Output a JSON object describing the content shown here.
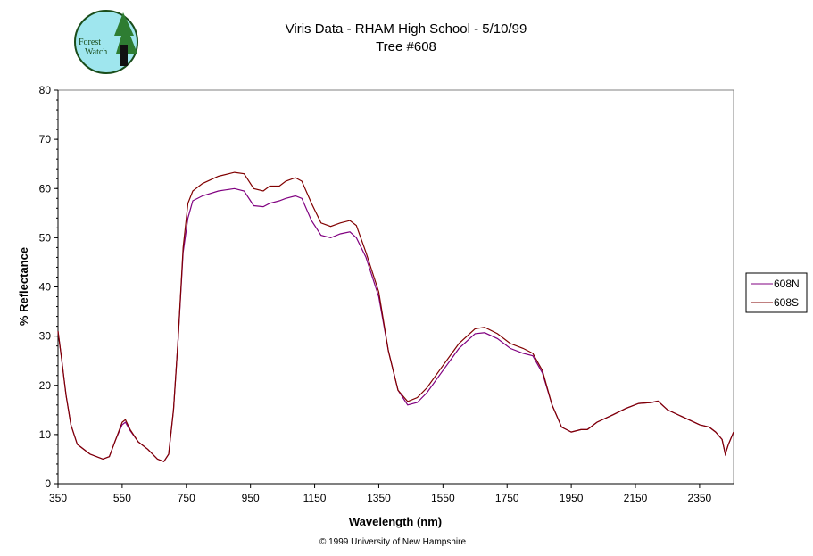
{
  "logo_text": "Forest Watch",
  "copyright": "© 1999 University of New Hampshire",
  "colors": {
    "608N": "#800080",
    "608S": "#800000"
  },
  "chart_data": {
    "type": "line",
    "title": "Viris Data - RHAM High School - 5/10/99",
    "subtitle": "Tree #608",
    "xlabel": "Wavelength (nm)",
    "ylabel": "% Reflectance",
    "xlim": [
      350,
      2456
    ],
    "ylim": [
      0,
      80
    ],
    "xticks": [
      350,
      550,
      750,
      950,
      1150,
      1350,
      1550,
      1750,
      1950,
      2150,
      2350
    ],
    "yticks": [
      0,
      10,
      20,
      30,
      40,
      50,
      60,
      70,
      80
    ],
    "legend": "right",
    "x": [
      350,
      360,
      375,
      390,
      410,
      450,
      490,
      510,
      530,
      550,
      560,
      575,
      600,
      630,
      660,
      680,
      695,
      710,
      725,
      740,
      755,
      770,
      800,
      850,
      900,
      930,
      960,
      990,
      1010,
      1040,
      1060,
      1090,
      1110,
      1140,
      1170,
      1200,
      1230,
      1260,
      1280,
      1310,
      1350,
      1380,
      1410,
      1440,
      1470,
      1500,
      1550,
      1600,
      1650,
      1680,
      1720,
      1760,
      1800,
      1830,
      1860,
      1890,
      1920,
      1950,
      1980,
      2000,
      2030,
      2080,
      2120,
      2160,
      2200,
      2220,
      2250,
      2300,
      2350,
      2380,
      2400,
      2420,
      2430,
      2440,
      2456
    ],
    "series": [
      {
        "name": "608N",
        "values": [
          31,
          26,
          18,
          12,
          8,
          6,
          5,
          5.5,
          9,
          12,
          12.5,
          10.8,
          8.5,
          7,
          5,
          4.5,
          6,
          15,
          30,
          47,
          54,
          57.5,
          58.5,
          59.5,
          60,
          59.5,
          56.5,
          56.3,
          57,
          57.5,
          58,
          58.5,
          58,
          53.5,
          50.5,
          50,
          50.8,
          51.2,
          50,
          46,
          38,
          27,
          19,
          16,
          16.5,
          18.5,
          23,
          27.5,
          30.5,
          30.7,
          29.5,
          27.5,
          26.5,
          26,
          22.5,
          16,
          11.5,
          10.5,
          11,
          11,
          12.5,
          14,
          15.3,
          16.3,
          16.5,
          16.8,
          15,
          13.5,
          12,
          11.5,
          10.5,
          9,
          6,
          8,
          10.5
        ]
      },
      {
        "name": "608S",
        "values": [
          31,
          26,
          18,
          12,
          8,
          6,
          5,
          5.5,
          9,
          12.5,
          13,
          11,
          8.5,
          7,
          5,
          4.5,
          6,
          15,
          30,
          48,
          57,
          59.5,
          61,
          62.5,
          63.3,
          63,
          60,
          59.5,
          60.5,
          60.5,
          61.5,
          62.2,
          61.5,
          57,
          53,
          52.3,
          53,
          53.5,
          52.5,
          47,
          39,
          27,
          19,
          16.7,
          17.5,
          19.5,
          24,
          28.5,
          31.5,
          31.8,
          30.5,
          28.5,
          27.5,
          26.5,
          23,
          16,
          11.5,
          10.5,
          11,
          11,
          12.5,
          14,
          15.3,
          16.3,
          16.5,
          16.8,
          15,
          13.5,
          12,
          11.5,
          10.5,
          9,
          6,
          8,
          10.5
        ]
      }
    ]
  }
}
